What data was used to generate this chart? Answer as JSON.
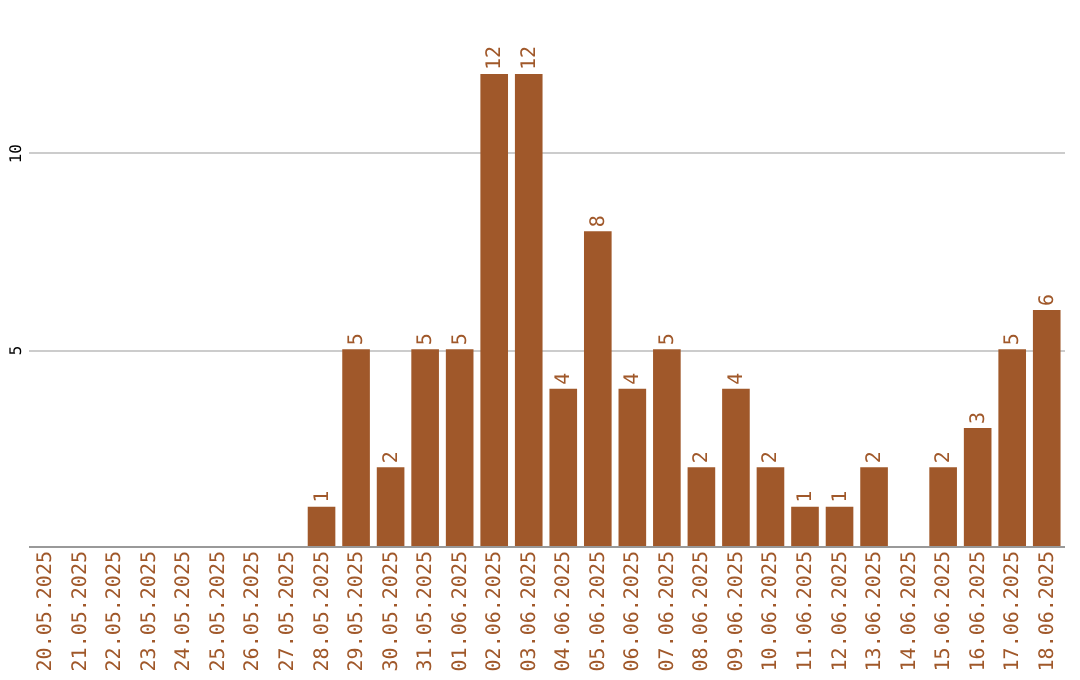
{
  "chart_data": {
    "type": "bar",
    "categories": [
      "20.05.2025",
      "21.05.2025",
      "22.05.2025",
      "23.05.2025",
      "24.05.2025",
      "25.05.2025",
      "26.05.2025",
      "27.05.2025",
      "28.05.2025",
      "29.05.2025",
      "30.05.2025",
      "31.05.2025",
      "01.06.2025",
      "02.06.2025",
      "03.06.2025",
      "04.06.2025",
      "05.06.2025",
      "06.06.2025",
      "07.06.2025",
      "08.06.2025",
      "09.06.2025",
      "10.06.2025",
      "11.06.2025",
      "12.06.2025",
      "13.06.2025",
      "14.06.2025",
      "15.06.2025",
      "16.06.2025",
      "17.06.2025",
      "18.06.2025"
    ],
    "values": [
      0,
      0,
      0,
      0,
      0,
      0,
      0,
      0,
      1,
      5,
      2,
      5,
      5,
      12,
      12,
      4,
      8,
      4,
      5,
      2,
      4,
      2,
      1,
      1,
      2,
      0,
      2,
      3,
      5,
      6
    ],
    "value_labels": [
      null,
      null,
      null,
      null,
      null,
      null,
      null,
      null,
      "1",
      "5",
      "2",
      "5",
      "5",
      "12",
      "12",
      "4",
      "8",
      "4",
      "5",
      "2",
      "4",
      "2",
      "1",
      "1",
      "2",
      null,
      "2",
      "3",
      "5",
      "6"
    ],
    "color": "#a0582a",
    "ylim": [
      0,
      12
    ],
    "yticks": [
      5,
      10
    ],
    "grid": "y"
  }
}
